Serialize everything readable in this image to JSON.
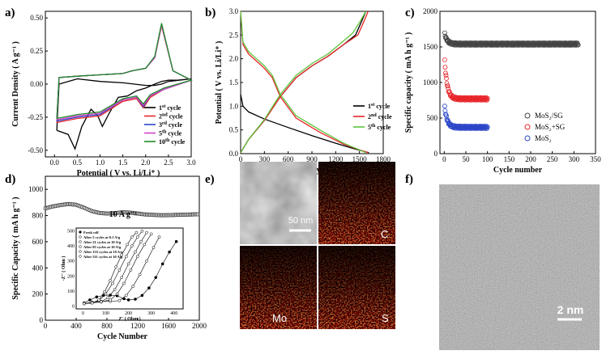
{
  "panels": {
    "a": {
      "label": "a)"
    },
    "b": {
      "label": "b)"
    },
    "c": {
      "label": "c)"
    },
    "d": {
      "label": "d)"
    },
    "e": {
      "label": "e)"
    },
    "f": {
      "label": "f)"
    }
  },
  "chart_data": [
    {
      "id": "a",
      "type": "line",
      "title": "",
      "xlabel": "Potential ( V vs. Li/Li⁺ )",
      "ylabel": "Current Density ( A g⁻¹ )",
      "xlim": [
        -0.2,
        3.0
      ],
      "ylim": [
        -0.55,
        0.55
      ],
      "xticks": [
        "0.0",
        "0.5",
        "1.0",
        "1.5",
        "2.0",
        "2.5",
        "3.0"
      ],
      "yticks": [
        "-0.50",
        "-0.25",
        "0.00",
        "0.25",
        "0.50"
      ],
      "series": [
        {
          "name": "1st cycle",
          "color": "#000000",
          "x": [
            0.05,
            0.3,
            0.45,
            0.6,
            0.8,
            0.95,
            1.05,
            1.2,
            1.4,
            1.6,
            1.8,
            2.0,
            2.2,
            2.35,
            2.5,
            2.7,
            3.0,
            2.5,
            2.35,
            2.2,
            2.0,
            1.5,
            1.0,
            0.5,
            0.1,
            0.05
          ],
          "y": [
            -0.35,
            -0.38,
            -0.49,
            -0.32,
            -0.19,
            -0.24,
            -0.32,
            -0.22,
            -0.1,
            -0.09,
            -0.05,
            -0.03,
            0.0,
            0.02,
            0.03,
            0.03,
            0.04,
            0.02,
            0.0,
            -0.01,
            -0.01,
            0.01,
            0.02,
            0.04,
            0.0,
            -0.35
          ]
        },
        {
          "name": "2nd cycle",
          "color": "#e8262a",
          "x": [
            0.05,
            0.5,
            1.0,
            1.5,
            1.8,
            1.95,
            2.1,
            2.4,
            3.0,
            2.6,
            2.35,
            2.2,
            2.0,
            1.7,
            1.5,
            1.0,
            0.5,
            0.1,
            0.05
          ],
          "y": [
            -0.29,
            -0.26,
            -0.24,
            -0.13,
            -0.11,
            -0.18,
            -0.1,
            -0.04,
            0.03,
            0.1,
            0.44,
            0.2,
            0.12,
            0.1,
            0.08,
            0.07,
            0.06,
            0.05,
            -0.29
          ]
        },
        {
          "name": "3rd cycle",
          "color": "#2b46c8",
          "x": [
            0.05,
            0.5,
            1.0,
            1.5,
            1.8,
            1.95,
            2.1,
            2.4,
            3.0,
            2.6,
            2.35,
            2.2,
            2.0,
            1.7,
            1.5,
            1.0,
            0.5,
            0.1,
            0.05
          ],
          "y": [
            -0.28,
            -0.25,
            -0.23,
            -0.12,
            -0.1,
            -0.17,
            -0.09,
            -0.04,
            0.03,
            0.1,
            0.45,
            0.2,
            0.12,
            0.1,
            0.08,
            0.07,
            0.06,
            0.05,
            -0.28
          ]
        },
        {
          "name": "5th cycle",
          "color": "#d040c8",
          "x": [
            0.05,
            0.5,
            1.0,
            1.5,
            1.8,
            1.95,
            2.1,
            2.4,
            3.0,
            2.6,
            2.35,
            2.2,
            2.0,
            1.7,
            1.5,
            1.0,
            0.5,
            0.1,
            0.05
          ],
          "y": [
            -0.27,
            -0.24,
            -0.22,
            -0.12,
            -0.1,
            -0.16,
            -0.09,
            -0.04,
            0.03,
            0.1,
            0.45,
            0.2,
            0.12,
            0.1,
            0.08,
            0.07,
            0.06,
            0.05,
            -0.27
          ]
        },
        {
          "name": "10th cycle",
          "color": "#1e8c2a",
          "x": [
            0.05,
            0.5,
            1.0,
            1.5,
            1.8,
            1.95,
            2.1,
            2.4,
            3.0,
            2.6,
            2.35,
            2.2,
            2.0,
            1.7,
            1.5,
            1.0,
            0.5,
            0.1,
            0.05
          ],
          "y": [
            -0.26,
            -0.23,
            -0.21,
            -0.11,
            -0.09,
            -0.15,
            -0.08,
            -0.03,
            0.03,
            0.1,
            0.46,
            0.21,
            0.12,
            0.1,
            0.08,
            0.07,
            0.06,
            0.05,
            -0.26
          ]
        }
      ],
      "legend": [
        {
          "prefix": "1",
          "sup": "st",
          "suffix": " cycle",
          "color": "#000000"
        },
        {
          "prefix": "2",
          "sup": "nd",
          "suffix": " cycle",
          "color": "#e8262a"
        },
        {
          "prefix": "3",
          "sup": "rd",
          "suffix": " cycle",
          "color": "#2b46c8"
        },
        {
          "prefix": "5",
          "sup": "th",
          "suffix": " cycle",
          "color": "#d040c8"
        },
        {
          "prefix": "10",
          "sup": "th",
          "suffix": " cycle",
          "color": "#1e8c2a"
        }
      ]
    },
    {
      "id": "b",
      "type": "line",
      "xlabel": "Specific Capacity ( mA h g⁻¹ )",
      "ylabel": "Potential ( V vs. Li/Li⁺ )",
      "xlim": [
        0,
        1800
      ],
      "ylim": [
        0,
        3.0
      ],
      "xticks": [
        "0",
        "300",
        "600",
        "900",
        "1200",
        "1500",
        "1800"
      ],
      "yticks": [
        "0.0",
        "0.5",
        "1.0",
        "1.5",
        "2.0",
        "2.5",
        "3.0"
      ],
      "series": [
        {
          "name": "1st discharge",
          "color": "#000000",
          "x": [
            0,
            30,
            100,
            300,
            600,
            900,
            1200,
            1400,
            1550,
            1620
          ],
          "y": [
            1.25,
            1.0,
            0.88,
            0.73,
            0.55,
            0.38,
            0.22,
            0.12,
            0.05,
            0.02
          ]
        },
        {
          "name": "1st charge",
          "color": "#000000",
          "x": [
            0,
            100,
            300,
            500,
            700,
            900,
            1100,
            1300,
            1450,
            1530,
            1580
          ],
          "y": [
            0.02,
            0.3,
            0.7,
            1.2,
            1.6,
            1.85,
            2.05,
            2.3,
            2.5,
            2.8,
            3.0
          ]
        },
        {
          "name": "2nd discharge",
          "color": "#e8262a",
          "x": [
            0,
            30,
            100,
            200,
            300,
            400,
            500,
            700,
            1000,
            1300,
            1500,
            1610
          ],
          "y": [
            3.0,
            2.3,
            2.1,
            1.95,
            1.8,
            1.6,
            1.2,
            0.75,
            0.45,
            0.2,
            0.08,
            0.02
          ]
        },
        {
          "name": "2nd charge",
          "color": "#e8262a",
          "x": [
            0,
            100,
            300,
            500,
            700,
            900,
            1100,
            1300,
            1480,
            1560,
            1610
          ],
          "y": [
            0.02,
            0.3,
            0.7,
            1.2,
            1.6,
            1.85,
            2.05,
            2.3,
            2.5,
            2.8,
            3.0
          ]
        },
        {
          "name": "5th discharge",
          "color": "#5ec53c",
          "x": [
            0,
            30,
            100,
            200,
            300,
            400,
            500,
            700,
            1000,
            1300,
            1500,
            1580
          ],
          "y": [
            3.0,
            2.35,
            2.15,
            2.0,
            1.85,
            1.65,
            1.25,
            0.8,
            0.5,
            0.22,
            0.08,
            0.02
          ]
        },
        {
          "name": "5th charge",
          "color": "#5ec53c",
          "x": [
            0,
            100,
            300,
            500,
            700,
            900,
            1100,
            1280,
            1420,
            1520,
            1580
          ],
          "y": [
            0.02,
            0.3,
            0.72,
            1.25,
            1.65,
            1.9,
            2.1,
            2.35,
            2.55,
            2.82,
            3.0
          ]
        }
      ],
      "legend": [
        {
          "prefix": "1",
          "sup": "st",
          "suffix": " cycle",
          "color": "#000000"
        },
        {
          "prefix": "2",
          "sup": "nd",
          "suffix": " cycle",
          "color": "#e8262a"
        },
        {
          "prefix": "5",
          "sup": "th",
          "suffix": " cycle",
          "color": "#5ec53c"
        }
      ]
    },
    {
      "id": "c",
      "type": "scatter",
      "xlabel": "Cycle number",
      "ylabel": "Specific capacity ( mA h g⁻¹ )",
      "xlim": [
        -10,
        350
      ],
      "ylim": [
        0,
        2000
      ],
      "xticks": [
        "0",
        "50",
        "100",
        "150",
        "200",
        "250",
        "300",
        "350"
      ],
      "yticks": [
        "0",
        "500",
        "1000",
        "1500",
        "2000"
      ],
      "series": [
        {
          "name": "MoS₂/SG",
          "color": "#444444",
          "n_points": 310,
          "start": 1680,
          "plateau": 1540
        },
        {
          "name": "MoS₂+SG",
          "color": "#e8262a",
          "n_points": 100,
          "start": 1300,
          "plateau": 770
        },
        {
          "name": "MoS₂",
          "color": "#2b46c8",
          "n_points": 100,
          "start": 650,
          "plateau": 370
        }
      ]
    },
    {
      "id": "d",
      "type": "line",
      "xlabel": "Cycle Number",
      "ylabel": "Specific Capacity ( mA h g⁻¹ )",
      "annotation": "10 A g⁻¹",
      "xlim": [
        0,
        2000
      ],
      "ylim": [
        0,
        1100
      ],
      "xticks": [
        "0",
        "400",
        "800",
        "1200",
        "1600",
        "2000"
      ],
      "yticks": [
        "0",
        "200",
        "400",
        "600",
        "800",
        "1000"
      ],
      "series": [
        {
          "name": "capacity",
          "color": "#444444",
          "x": [
            0,
            100,
            200,
            300,
            400,
            500,
            600,
            700,
            800,
            900,
            1000,
            1100,
            1200,
            1300,
            1400,
            1500,
            1600,
            1700,
            1800,
            1900,
            2000
          ],
          "y": [
            855,
            870,
            880,
            888,
            882,
            860,
            835,
            820,
            815,
            818,
            825,
            822,
            815,
            808,
            805,
            802,
            803,
            805,
            806,
            808,
            810
          ]
        }
      ],
      "inset": {
        "xlabel": "Z' ( Ohm )",
        "ylabel": "-Z'' ( Ohm )",
        "xticks": [
          "0",
          "100",
          "200",
          "300",
          "400"
        ],
        "yticks": [
          "0",
          "100",
          "200",
          "300",
          "400",
          "500"
        ],
        "xlim": [
          -30,
          440
        ],
        "ylim": [
          -20,
          520
        ],
        "legend": [
          "Fresh cell",
          "After 5 cycles at 0.1 A/g",
          "After 21 cycles at 10 A/g",
          "After 85 cycles at 10 A/g",
          "After 155 cycles at 10 A/g",
          "After 511 cycles at 10 A/g"
        ],
        "series": [
          {
            "name": "Fresh cell",
            "filled": true,
            "x": [
              5,
              30,
              60,
              90,
              120,
              150,
              180,
              200,
              230,
              260,
              290,
              320,
              350,
              380,
              410
            ],
            "y": [
              20,
              40,
              60,
              70,
              72,
              68,
              48,
              40,
              45,
              70,
              120,
              190,
              280,
              360,
              430
            ]
          },
          {
            "name": "After 5 cycles at 0.1 A/g",
            "filled": false,
            "x": [
              5,
              40,
              80,
              120,
              160,
              190,
              220,
              250,
              280,
              310,
              335
            ],
            "y": [
              15,
              25,
              30,
              30,
              35,
              70,
              130,
              210,
              300,
              390,
              460
            ]
          },
          {
            "name": "After 21 cycles at 10 A/g",
            "filled": false,
            "x": [
              5,
              40,
              80,
              120,
              150,
              180,
              210,
              240,
              270,
              300
            ],
            "y": [
              15,
              22,
              26,
              40,
              80,
              150,
              240,
              330,
              410,
              480
            ]
          },
          {
            "name": "After 85 cycles at 10 A/g",
            "filled": false,
            "x": [
              5,
              40,
              80,
              110,
              140,
              170,
              200,
              230,
              255,
              280
            ],
            "y": [
              15,
              20,
              28,
              55,
              110,
              190,
              280,
              360,
              430,
              490
            ]
          },
          {
            "name": "After 155 cycles at 10 A/g",
            "filled": false,
            "x": [
              5,
              40,
              70,
              100,
              130,
              160,
              190,
              215,
              240,
              260
            ],
            "y": [
              15,
              20,
              35,
              80,
              150,
              240,
              330,
              400,
              460,
              500
            ]
          },
          {
            "name": "After 511 cycles at 10 A/g",
            "filled": false,
            "x": [
              5,
              40,
              70,
              95,
              120,
              145,
              170,
              195,
              215,
              235
            ],
            "y": [
              15,
              20,
              40,
              95,
              170,
              260,
              340,
              410,
              460,
              490
            ]
          }
        ]
      }
    }
  ],
  "panel_e": {
    "tiles": [
      {
        "label": "",
        "tint": "sem",
        "scale": "50 nm"
      },
      {
        "label": "C",
        "tint": "map"
      },
      {
        "label": "Mo",
        "tint": "map"
      },
      {
        "label": "S",
        "tint": "map"
      }
    ]
  },
  "panel_f": {
    "scale": "2 nm"
  }
}
